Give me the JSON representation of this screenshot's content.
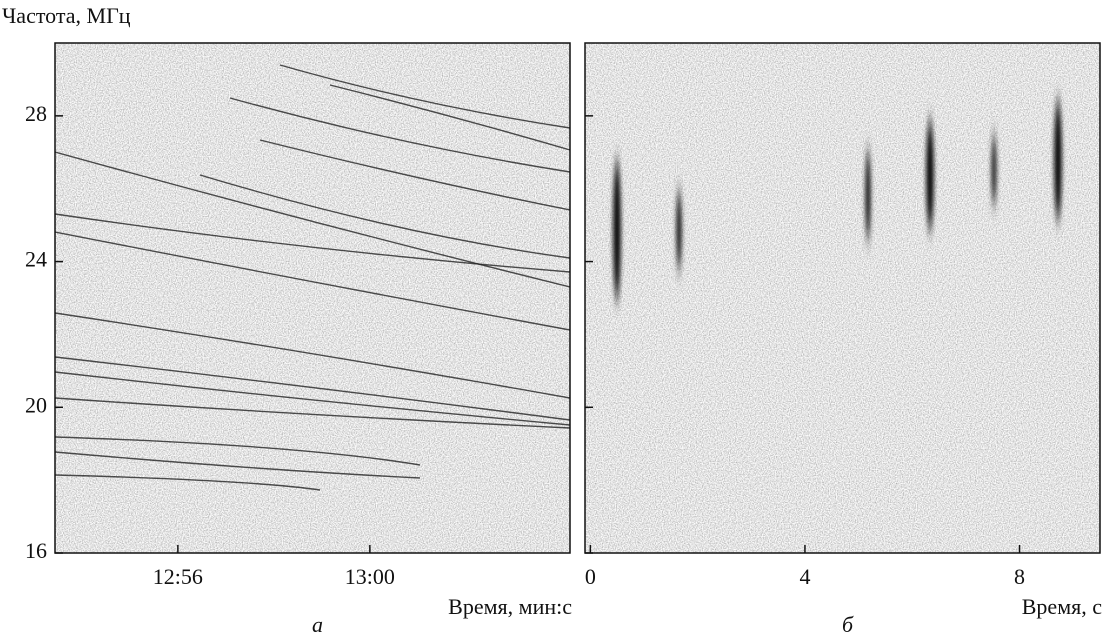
{
  "chart_data": [
    {
      "type": "spectrogram",
      "ylabel": "Частота, МГц",
      "xlabel": "Время, мин:с",
      "panel_label": "а",
      "xlim": [
        773.44,
        784.17
      ],
      "ylim": [
        16,
        30
      ],
      "xticks": [
        {
          "value": 776,
          "label": "12:56"
        },
        {
          "value": 780,
          "label": "13:00"
        }
      ],
      "yticks": [
        16,
        20,
        24,
        28
      ]
    },
    {
      "type": "spectrogram",
      "xlabel": "Время, с",
      "panel_label": "б",
      "xlim": [
        -0.1,
        9.5
      ],
      "ylim": [
        16,
        30
      ],
      "xticks": [
        0,
        4,
        8
      ],
      "yticks": [
        16,
        20,
        24,
        28
      ]
    }
  ]
}
